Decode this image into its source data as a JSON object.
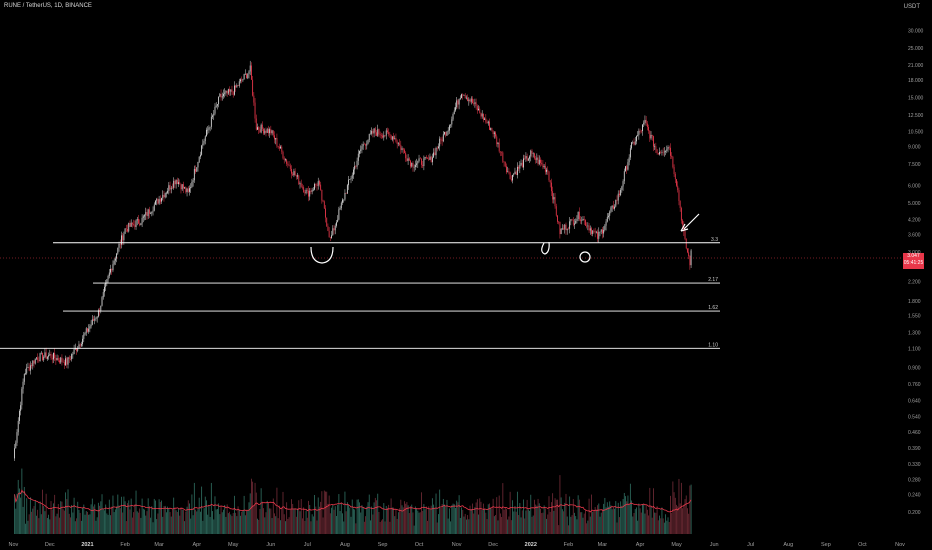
{
  "header": {
    "title": "RUNE / TetherUS, 1D, BINANCE",
    "currency": "USDT"
  },
  "colors": {
    "background": "#000000",
    "up": "#d9d9d9",
    "down": "#e8374a",
    "volume_up": "#2e6b5e",
    "volume_down": "#6e2a35",
    "level": "#ffffff",
    "ma": "#e8374a"
  },
  "price_tag": {
    "value": "3.047",
    "countdown": "05:41:25"
  },
  "chart_data": {
    "type": "candlestick",
    "title": "RUNE / TetherUS, 1D, BINANCE",
    "yscale": "log",
    "ylim": [
      0.19,
      38
    ],
    "y_ticks": [
      "30.000",
      "25.000",
      "21.000",
      "18.000",
      "15.000",
      "12.500",
      "10.500",
      "9.000",
      "7.500",
      "6.000",
      "5.000",
      "4.200",
      "3.600",
      "3.000",
      "2.600",
      "2.200",
      "1.800",
      "1.550",
      "1.300",
      "1.100",
      "0.900",
      "0.760",
      "0.640",
      "0.540",
      "0.460",
      "0.390",
      "0.330",
      "0.280",
      "0.240",
      "0.200"
    ],
    "x_ticks": [
      "Nov",
      "Dec",
      "2021",
      "Feb",
      "Mar",
      "Apr",
      "May",
      "Jun",
      "Jul",
      "Aug",
      "Sep",
      "Oct",
      "Nov",
      "Dec",
      "2022",
      "Feb",
      "Mar",
      "Apr",
      "May",
      "Jun",
      "Jul",
      "Aug",
      "Sep",
      "Oct",
      "Nov"
    ],
    "levels": [
      {
        "label": "3.3",
        "value": 3.3
      },
      {
        "label": "2.17",
        "value": 2.17
      },
      {
        "label": "1.62",
        "value": 1.62
      },
      {
        "label": "1.10",
        "value": 1.1
      }
    ],
    "last_price": 3.047,
    "price_path": [
      [
        "2020-11-01",
        0.35
      ],
      [
        "2020-11-10",
        0.85
      ],
      [
        "2020-11-20",
        1.0
      ],
      [
        "2020-12-01",
        1.02
      ],
      [
        "2020-12-15",
        0.95
      ],
      [
        "2020-12-25",
        1.15
      ],
      [
        "2021-01-10",
        1.6
      ],
      [
        "2021-01-20",
        2.5
      ],
      [
        "2021-02-01",
        3.8
      ],
      [
        "2021-02-15",
        4.2
      ],
      [
        "2021-03-01",
        5.2
      ],
      [
        "2021-03-15",
        6.4
      ],
      [
        "2021-03-25",
        5.5
      ],
      [
        "2021-04-05",
        9.0
      ],
      [
        "2021-04-20",
        15.0
      ],
      [
        "2021-05-01",
        16.0
      ],
      [
        "2021-05-15",
        20.0
      ],
      [
        "2021-05-20",
        11.0
      ],
      [
        "2021-06-01",
        10.5
      ],
      [
        "2021-06-15",
        7.5
      ],
      [
        "2021-07-01",
        5.5
      ],
      [
        "2021-07-10",
        6.2
      ],
      [
        "2021-07-20",
        3.4
      ],
      [
        "2021-08-01",
        5.5
      ],
      [
        "2021-08-15",
        9.0
      ],
      [
        "2021-08-25",
        10.5
      ],
      [
        "2021-09-10",
        10.0
      ],
      [
        "2021-09-25",
        7.5
      ],
      [
        "2021-10-10",
        7.8
      ],
      [
        "2021-10-25",
        11.0
      ],
      [
        "2021-11-05",
        16.0
      ],
      [
        "2021-11-15",
        14.0
      ],
      [
        "2021-12-01",
        10.5
      ],
      [
        "2021-12-15",
        6.5
      ],
      [
        "2022-01-01",
        8.3
      ],
      [
        "2022-01-15",
        7.0
      ],
      [
        "2022-01-25",
        3.7
      ],
      [
        "2022-02-10",
        4.4
      ],
      [
        "2022-02-25",
        3.5
      ],
      [
        "2022-03-01",
        3.8
      ],
      [
        "2022-03-15",
        5.5
      ],
      [
        "2022-03-25",
        9.0
      ],
      [
        "2022-04-05",
        11.5
      ],
      [
        "2022-04-15",
        8.5
      ],
      [
        "2022-04-25",
        9.0
      ],
      [
        "2022-05-01",
        6.2
      ],
      [
        "2022-05-08",
        3.3
      ],
      [
        "2022-05-12",
        2.7
      ],
      [
        "2022-05-13",
        3.047
      ]
    ]
  }
}
